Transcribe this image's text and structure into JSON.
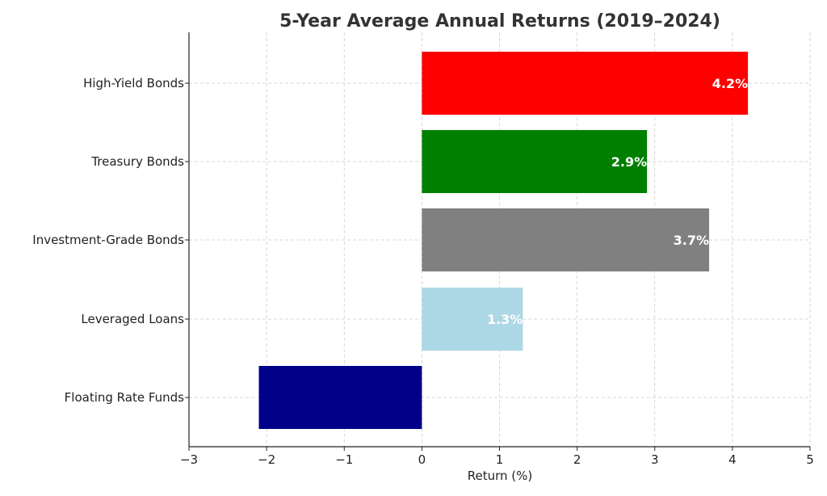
{
  "chart_data": {
    "type": "bar",
    "orientation": "horizontal",
    "title": "5-Year Average Annual Returns (2019–2024)",
    "xlabel": "Return (%)",
    "ylabel": "",
    "xlim": [
      -3,
      5
    ],
    "xticks": [
      -3,
      -2,
      -1,
      0,
      1,
      2,
      3,
      4,
      5
    ],
    "xtick_labels": [
      "−3",
      "−2",
      "−1",
      "0",
      "1",
      "2",
      "3",
      "4",
      "5"
    ],
    "categories": [
      "High-Yield Bonds",
      "Treasury Bonds",
      "Investment-Grade Bonds",
      "Leveraged Loans",
      "Floating Rate Funds"
    ],
    "values": [
      4.2,
      2.9,
      3.7,
      1.3,
      -2.1
    ],
    "data_labels": [
      "4.2%",
      "2.9%",
      "3.7%",
      "1.3%",
      ""
    ],
    "colors": [
      "#ff0000",
      "#008000",
      "#808080",
      "#add8e6",
      "#00008b"
    ],
    "grid": true,
    "legend": "none"
  }
}
